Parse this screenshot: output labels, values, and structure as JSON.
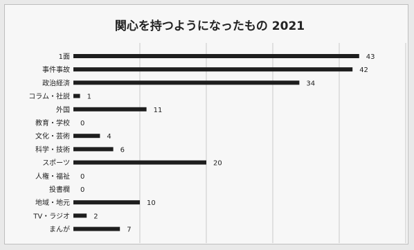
{
  "chart_data": {
    "type": "bar",
    "orientation": "horizontal",
    "title": "関心を持つようになったもの 2021",
    "categories": [
      "1面",
      "事件事故",
      "政治経済",
      "コラム・社説",
      "外国",
      "教育・学校",
      "文化・芸術",
      "科学・技術",
      "スポーツ",
      "人権・福祉",
      "投書欄",
      "地域・地元",
      "TV・ラジオ",
      "まんが"
    ],
    "values": [
      43,
      42,
      34,
      1,
      11,
      0,
      4,
      6,
      20,
      0,
      0,
      10,
      2,
      7
    ],
    "xlim": [
      0,
      50
    ],
    "grid": true,
    "colors": {
      "bar": "#1e1e1e",
      "grid": "#c8c8c8",
      "text": "#222222"
    }
  }
}
